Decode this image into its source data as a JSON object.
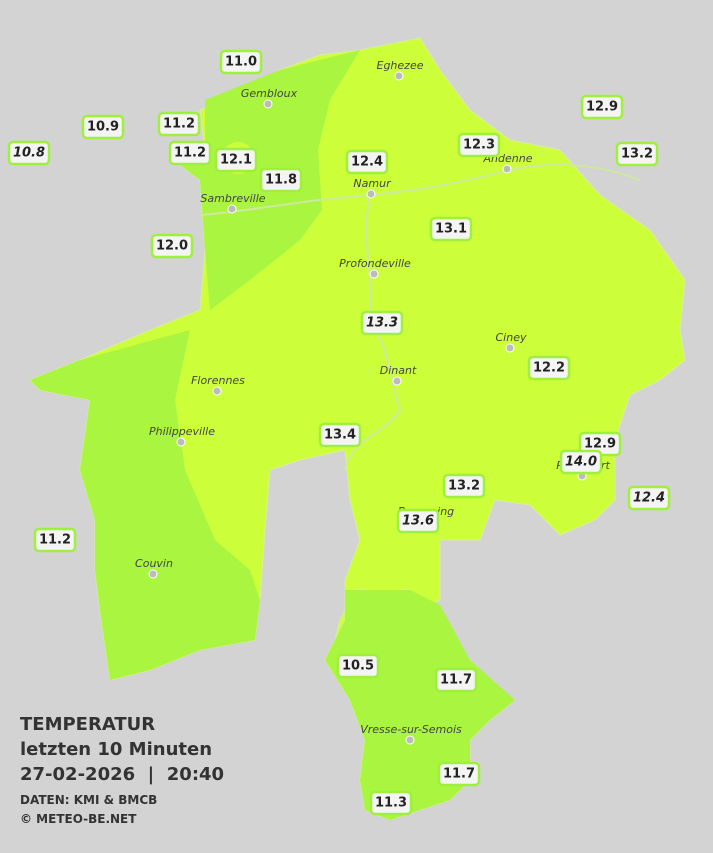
{
  "legend": {
    "title": "TEMPERATUR",
    "period": "letzten 10 Minuten",
    "datetime": "27-02-2026  |  20:40",
    "source": "DATEN: KMI & BMCB",
    "copyright": "© METEO-BE.NET"
  },
  "cities": [
    "Eghezee",
    "Gembloux",
    "Andenne",
    "Namur",
    "Sambreville",
    "Profondeville",
    "Ciney",
    "Dinant",
    "Florennes",
    "Philippeville",
    "Rochefort",
    "Beauraing",
    "Couvin",
    "Vresse-sur-Semois"
  ],
  "stations": [
    "11.0",
    "10.9",
    "10.8",
    "11.2",
    "11.2",
    "12.1",
    "11.8",
    "12.0",
    "12.4",
    "12.3",
    "12.9",
    "13.2",
    "13.1",
    "13.3",
    "12.2",
    "13.4",
    "12.9",
    "14.0",
    "12.4",
    "13.2",
    "13.6",
    "11.2",
    "10.5",
    "11.7",
    "11.7",
    "11.3"
  ]
}
